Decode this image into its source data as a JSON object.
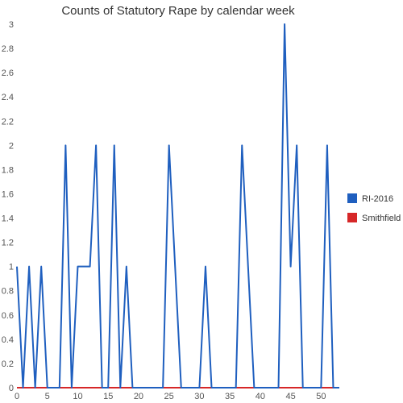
{
  "chart_data": {
    "type": "line",
    "title": "Counts of Statutory Rape by calendar week",
    "xlabel": "",
    "ylabel": "",
    "xlim": [
      0,
      53
    ],
    "ylim": [
      0,
      3
    ],
    "x_ticks": [
      0,
      5,
      10,
      15,
      20,
      25,
      30,
      35,
      40,
      45,
      50
    ],
    "y_ticks": [
      0,
      0.2,
      0.4,
      0.6,
      0.8,
      1,
      1.2,
      1.4,
      1.6,
      1.8,
      2,
      2.2,
      2.4,
      2.6,
      2.8,
      3
    ],
    "grid": false,
    "legend_position": "right",
    "x": [
      0,
      1,
      2,
      3,
      4,
      5,
      6,
      7,
      8,
      9,
      10,
      11,
      12,
      13,
      14,
      15,
      16,
      17,
      18,
      19,
      20,
      21,
      22,
      23,
      24,
      25,
      26,
      27,
      28,
      29,
      30,
      31,
      32,
      33,
      34,
      35,
      36,
      37,
      38,
      39,
      40,
      41,
      42,
      43,
      44,
      45,
      46,
      47,
      48,
      49,
      50,
      51,
      52,
      53
    ],
    "series": [
      {
        "name": "RI-2016",
        "color": "#1f5fbf",
        "values": [
          1,
          0,
          1,
          0,
          1,
          0,
          0,
          0,
          2,
          0,
          1,
          1,
          1,
          2,
          0,
          0,
          2,
          0,
          1,
          0,
          0,
          0,
          0,
          0,
          0,
          2,
          1,
          0,
          0,
          0,
          0,
          1,
          0,
          0,
          0,
          0,
          0,
          2,
          1,
          0,
          0,
          0,
          0,
          0,
          3,
          1,
          2,
          0,
          0,
          0,
          0,
          2,
          0,
          0
        ]
      },
      {
        "name": "Smithfield",
        "color": "#d62728",
        "values": [
          0,
          0,
          0,
          0,
          0,
          0,
          0,
          0,
          0,
          0,
          0,
          0,
          0,
          0,
          0,
          0,
          0,
          0,
          0,
          0,
          0,
          0,
          0,
          0,
          0,
          0,
          0,
          0,
          0,
          0,
          0,
          0,
          0,
          0,
          0,
          0,
          0,
          0,
          0,
          0,
          0,
          0,
          0,
          0,
          0,
          0,
          0,
          0,
          0,
          0,
          0,
          0,
          0,
          0
        ]
      }
    ]
  }
}
